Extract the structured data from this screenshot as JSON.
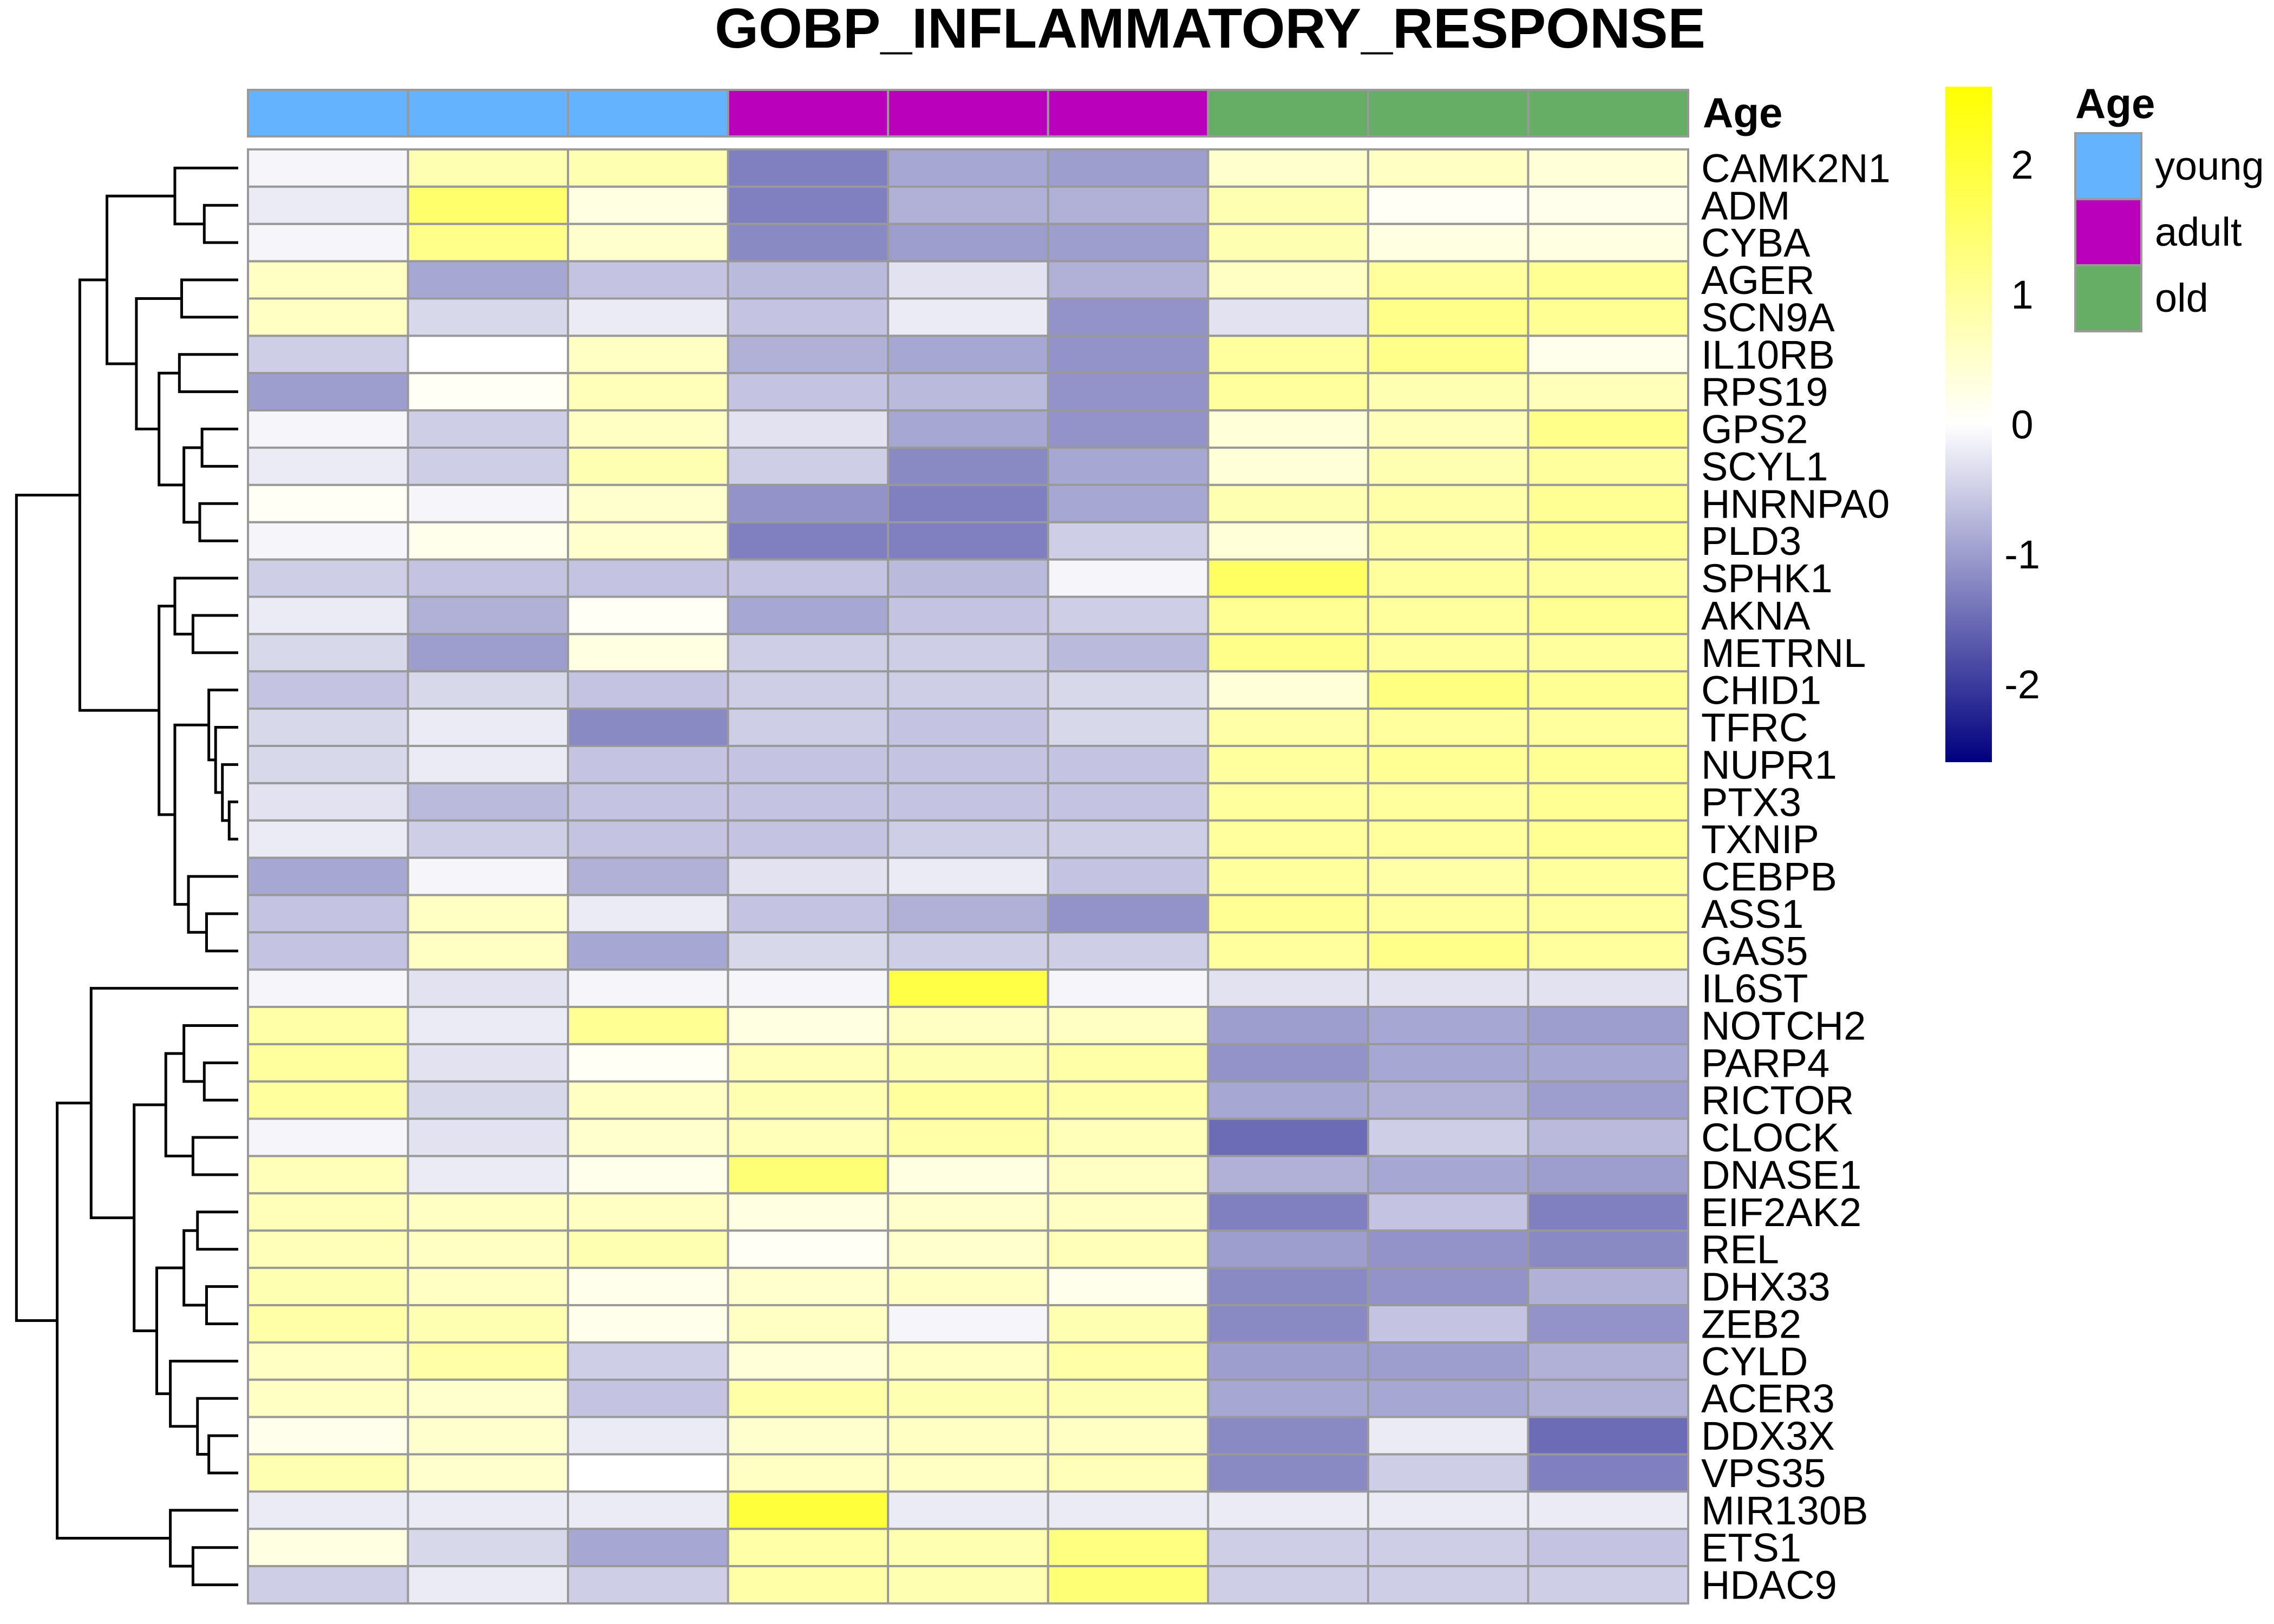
{
  "chart_data": {
    "type": "heatmap",
    "title": "GOBP_INFLAMMATORY_RESPONSE",
    "annotation": {
      "title": "Age",
      "groups": [
        {
          "label": "young",
          "color": "#63B3FF"
        },
        {
          "label": "adult",
          "color": "#BB00BB"
        },
        {
          "label": "old",
          "color": "#66AE66"
        }
      ],
      "columns": [
        "young",
        "young",
        "young",
        "adult",
        "adult",
        "adult",
        "old",
        "old",
        "old"
      ]
    },
    "colorbar": {
      "range": [
        -2.6,
        2.6
      ],
      "ticks": [
        2,
        1,
        0,
        -1,
        -2
      ],
      "tick_labels": [
        "2",
        "1",
        "0",
        "-1",
        "-2"
      ],
      "low_color": "#000080",
      "mid_color": "#FFFFFF",
      "high_color": "#FFFF00"
    },
    "rows": [
      "CAMK2N1",
      "ADM",
      "CYBA",
      "AGER",
      "SCN9A",
      "IL10RB",
      "RPS19",
      "GPS2",
      "SCYL1",
      "HNRNPA0",
      "PLD3",
      "SPHK1",
      "AKNA",
      "METRNL",
      "CHID1",
      "TFRC",
      "NUPR1",
      "PTX3",
      "TXNIP",
      "CEBPB",
      "ASS1",
      "GAS5",
      "IL6ST",
      "NOTCH2",
      "PARP4",
      "RICTOR",
      "CLOCK",
      "DNASE1",
      "EIF2AK2",
      "REL",
      "DHX33",
      "ZEB2",
      "CYLD",
      "ACER3",
      "DDX3X",
      "VPS35",
      "MIR130B",
      "ETS1",
      "HDAC9"
    ],
    "values": [
      [
        -0.1,
        0.8,
        0.8,
        -1.3,
        -0.9,
        -1.0,
        0.5,
        0.6,
        0.4
      ],
      [
        -0.2,
        1.5,
        0.3,
        -1.3,
        -0.8,
        -0.8,
        0.8,
        0.1,
        0.2
      ],
      [
        -0.1,
        1.2,
        0.5,
        -1.2,
        -1.0,
        -1.0,
        0.8,
        0.3,
        0.3
      ],
      [
        0.6,
        -0.9,
        -0.6,
        -0.7,
        -0.3,
        -0.8,
        0.6,
        1.0,
        1.1
      ],
      [
        0.6,
        -0.4,
        -0.2,
        -0.6,
        -0.2,
        -1.1,
        -0.3,
        1.2,
        1.1
      ],
      [
        -0.5,
        0.0,
        0.6,
        -0.8,
        -0.9,
        -1.1,
        1.0,
        1.2,
        0.2
      ],
      [
        -1.0,
        0.1,
        0.7,
        -0.6,
        -0.7,
        -1.1,
        1.0,
        0.8,
        0.7
      ],
      [
        -0.1,
        -0.5,
        0.6,
        -0.3,
        -0.9,
        -1.1,
        0.4,
        0.7,
        1.2
      ],
      [
        -0.2,
        -0.5,
        0.8,
        -0.5,
        -1.2,
        -0.9,
        0.4,
        0.8,
        1.0
      ],
      [
        0.1,
        -0.1,
        0.5,
        -1.1,
        -1.3,
        -0.9,
        0.8,
        0.9,
        1.1
      ],
      [
        -0.1,
        0.2,
        0.5,
        -1.3,
        -1.3,
        -0.5,
        0.4,
        0.9,
        1.1
      ],
      [
        -0.5,
        -0.6,
        -0.6,
        -0.6,
        -0.7,
        -0.1,
        1.6,
        1.0,
        1.0
      ],
      [
        -0.2,
        -0.8,
        0.1,
        -0.9,
        -0.6,
        -0.5,
        1.1,
        1.0,
        1.1
      ],
      [
        -0.4,
        -1.0,
        0.3,
        -0.5,
        -0.5,
        -0.7,
        1.2,
        1.0,
        1.0
      ],
      [
        -0.6,
        -0.4,
        -0.6,
        -0.5,
        -0.5,
        -0.4,
        0.4,
        1.3,
        1.1
      ],
      [
        -0.4,
        -0.2,
        -1.2,
        -0.5,
        -0.6,
        -0.4,
        0.9,
        1.0,
        1.0
      ],
      [
        -0.4,
        -0.2,
        -0.6,
        -0.6,
        -0.6,
        -0.6,
        1.0,
        1.1,
        1.1
      ],
      [
        -0.3,
        -0.7,
        -0.6,
        -0.6,
        -0.6,
        -0.6,
        1.0,
        1.0,
        1.1
      ],
      [
        -0.2,
        -0.5,
        -0.6,
        -0.6,
        -0.5,
        -0.5,
        1.0,
        1.0,
        1.1
      ],
      [
        -0.9,
        -0.1,
        -0.8,
        -0.3,
        -0.2,
        -0.6,
        1.0,
        0.9,
        1.0
      ],
      [
        -0.6,
        0.6,
        -0.2,
        -0.6,
        -0.8,
        -1.1,
        1.1,
        1.0,
        1.0
      ],
      [
        -0.6,
        0.6,
        -0.9,
        -0.4,
        -0.5,
        -0.5,
        1.0,
        1.2,
        1.0
      ],
      [
        -0.1,
        -0.3,
        -0.1,
        -0.1,
        1.9,
        -0.1,
        -0.3,
        -0.3,
        -0.3
      ],
      [
        0.9,
        -0.2,
        1.1,
        0.3,
        0.6,
        0.6,
        -1.0,
        -0.9,
        -1.0
      ],
      [
        1.0,
        -0.3,
        0.1,
        0.7,
        0.8,
        0.9,
        -1.1,
        -0.9,
        -0.9
      ],
      [
        1.0,
        -0.4,
        0.6,
        0.8,
        1.0,
        0.9,
        -0.9,
        -0.8,
        -1.0
      ],
      [
        -0.1,
        -0.3,
        0.5,
        0.7,
        0.9,
        0.7,
        -1.5,
        -0.5,
        -0.7
      ],
      [
        0.7,
        -0.2,
        0.2,
        1.4,
        0.3,
        0.6,
        -0.8,
        -0.9,
        -1.0
      ],
      [
        0.7,
        0.6,
        0.6,
        0.3,
        0.5,
        0.6,
        -1.3,
        -0.6,
        -1.3
      ],
      [
        0.7,
        0.6,
        0.8,
        0.1,
        0.5,
        0.7,
        -1.0,
        -1.1,
        -1.2
      ],
      [
        0.8,
        0.6,
        0.2,
        0.5,
        0.6,
        0.2,
        -1.2,
        -1.1,
        -0.8
      ],
      [
        0.9,
        0.8,
        0.2,
        0.6,
        -0.1,
        0.8,
        -1.2,
        -0.6,
        -1.1
      ],
      [
        0.6,
        0.9,
        -0.5,
        0.4,
        0.6,
        0.9,
        -1.0,
        -1.0,
        -0.8
      ],
      [
        0.6,
        0.5,
        -0.6,
        0.9,
        0.8,
        0.8,
        -0.9,
        -0.9,
        -0.8
      ],
      [
        0.2,
        0.5,
        -0.2,
        0.5,
        0.6,
        0.6,
        -1.2,
        -0.2,
        -1.5
      ],
      [
        0.8,
        0.5,
        0.0,
        0.6,
        0.6,
        0.7,
        -1.2,
        -0.5,
        -1.3
      ],
      [
        -0.2,
        -0.2,
        -0.2,
        2.0,
        -0.2,
        -0.2,
        -0.2,
        -0.2,
        -0.2
      ],
      [
        0.3,
        -0.4,
        -0.9,
        0.9,
        0.8,
        1.3,
        -0.5,
        -0.5,
        -0.6
      ],
      [
        -0.5,
        -0.2,
        -0.5,
        0.9,
        0.8,
        1.4,
        -0.5,
        -0.5,
        -0.5
      ]
    ]
  }
}
